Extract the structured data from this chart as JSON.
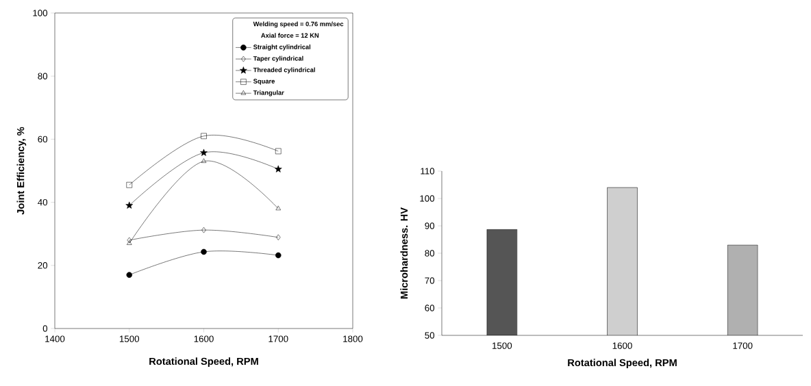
{
  "chart_data": [
    {
      "type": "line",
      "xlabel": "Rotational Speed, RPM",
      "ylabel": "Joint Efficiency, %",
      "legend_title": "Welding speed = 0.76 mm/sec",
      "annotations": [
        "Axial force = 12 KN"
      ],
      "x": [
        1500,
        1600,
        1700
      ],
      "xlim": [
        1400,
        1800
      ],
      "xticks": [
        1400,
        1500,
        1600,
        1700,
        1800
      ],
      "ylim": [
        0,
        100
      ],
      "yticks": [
        0,
        20,
        40,
        60,
        80,
        100
      ],
      "legend": "top right",
      "grid": false,
      "series": [
        {
          "name": "Straight cylindrical",
          "color": "#000000",
          "marker": "circle",
          "values": [
            17,
            24.3,
            23.2
          ]
        },
        {
          "name": "Taper cylindrical",
          "color": "#000000",
          "marker": "diamond",
          "values": [
            28,
            31.2,
            28.9
          ]
        },
        {
          "name": "Threaded cylindrical",
          "color": "#000000",
          "marker": "star",
          "values": [
            39,
            55.7,
            50.5
          ]
        },
        {
          "name": "Square",
          "color": "#000000",
          "marker": "square",
          "values": [
            45.5,
            61,
            56.2
          ]
        },
        {
          "name": "Triangular",
          "color": "#000000",
          "marker": "triangle",
          "values": [
            27,
            53,
            38
          ]
        }
      ]
    },
    {
      "type": "bar",
      "xlabel": "Rotational Speed, RPM",
      "ylabel": "Microhardness. HV",
      "categories": [
        "1500",
        "1600",
        "1700"
      ],
      "values": [
        88.7,
        104,
        83
      ],
      "colors": [
        "#555555",
        "#cfcfcf",
        "#b0b0b0"
      ],
      "ylim": [
        50,
        110
      ],
      "yticks": [
        50,
        60,
        70,
        80,
        90,
        100,
        110
      ],
      "grid": false,
      "legend": false
    }
  ]
}
